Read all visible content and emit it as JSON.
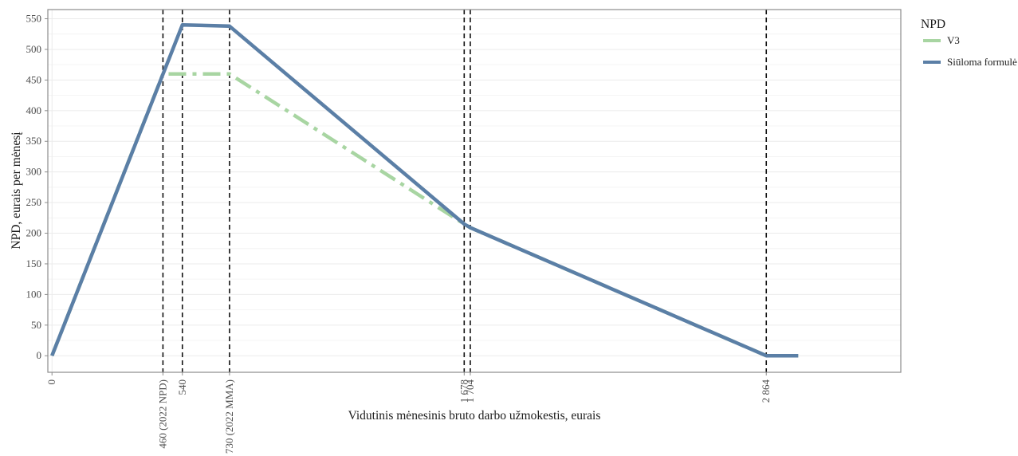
{
  "chart_data": {
    "type": "line",
    "xlabel": "Vidutinis mėnesinis bruto darbo užmokestis, eurais",
    "ylabel": "NPD, eurais per mėnesį",
    "xlim": [
      -15,
      3060
    ],
    "ylim": [
      -27,
      565
    ],
    "y_ticks": [
      0,
      50,
      100,
      150,
      200,
      250,
      300,
      350,
      400,
      450,
      500,
      550
    ],
    "x_ticks": [
      {
        "value": 0,
        "label": "0"
      },
      {
        "value": 400,
        "label": "460 (2022 NPD)"
      },
      {
        "value": 470,
        "label": "540"
      },
      {
        "value": 640,
        "label": "730 (2022 MMA)"
      },
      {
        "value": 1486,
        "label": "1 678"
      },
      {
        "value": 1508,
        "label": "1 704"
      },
      {
        "value": 2575,
        "label": "2 864"
      }
    ],
    "vlines": [
      400,
      470,
      640,
      1486,
      1508,
      2575
    ],
    "grid": true,
    "legend": {
      "title": "NPD",
      "position": "right"
    },
    "series": [
      {
        "name": "V3",
        "color": "#a8d5a2",
        "style": "dashdot",
        "x": [
          0,
          400,
          640,
          1486,
          1508,
          2575,
          2690
        ],
        "y": [
          0,
          460,
          460,
          215,
          209,
          0,
          0
        ]
      },
      {
        "name": "Siūloma formulė",
        "color": "#5b7fa6",
        "style": "solid",
        "x": [
          0,
          470,
          640,
          1486,
          1508,
          2575,
          2690
        ],
        "y": [
          0,
          540,
          538,
          215,
          209,
          0,
          0
        ]
      }
    ]
  }
}
